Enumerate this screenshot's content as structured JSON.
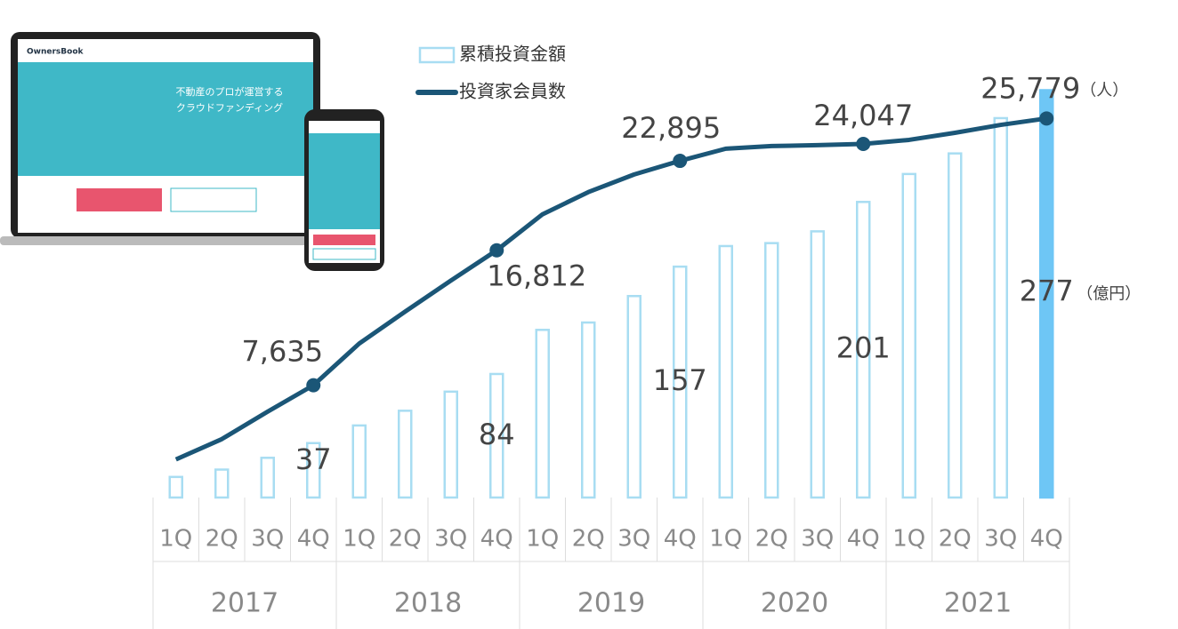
{
  "chart_data": {
    "type": "bar-line",
    "categories": [
      "1Q",
      "2Q",
      "3Q",
      "4Q",
      "1Q",
      "2Q",
      "3Q",
      "4Q",
      "1Q",
      "2Q",
      "3Q",
      "4Q",
      "1Q",
      "2Q",
      "3Q",
      "4Q",
      "1Q",
      "2Q",
      "3Q",
      "4Q"
    ],
    "groups": [
      "2017",
      "2018",
      "2019",
      "2020",
      "2021"
    ],
    "series": [
      {
        "name": "累積投資金額",
        "type": "bar",
        "unit": "（億円）",
        "color": "#a8ddf2",
        "colors": [
          "#a8ddf2",
          "#a8ddf2",
          "#a8ddf2",
          "#a8ddf2",
          "#a8ddf2",
          "#a8ddf2",
          "#a8ddf2",
          "#a8ddf2",
          "#a8ddf2",
          "#a8ddf2",
          "#a8ddf2",
          "#a8ddf2",
          "#a8ddf2",
          "#a8ddf2",
          "#a8ddf2",
          "#a8ddf2",
          "#a8ddf2",
          "#a8ddf2",
          "#a8ddf2",
          "#6ec6f5"
        ],
        "values": [
          14,
          19,
          27,
          37,
          49,
          59,
          72,
          84,
          114,
          119,
          137,
          157,
          171,
          173,
          181,
          201,
          220,
          234,
          258,
          277
        ]
      },
      {
        "name": "投資家会員数",
        "type": "line",
        "axis": "y2",
        "unit": "（人）",
        "color": "#1b5677",
        "values": [
          2590,
          3970,
          5840,
          7635,
          10470,
          12640,
          14750,
          16812,
          19260,
          20770,
          21970,
          22895,
          23720,
          23900,
          23960,
          24047,
          24320,
          24800,
          25340,
          25779
        ],
        "value_labels": [
          null,
          null,
          null,
          "7,635",
          null,
          null,
          null,
          "16,812",
          null,
          null,
          null,
          "22,895",
          null,
          null,
          null,
          "24,047",
          null,
          null,
          null,
          "25,779"
        ]
      }
    ],
    "ylim": [
      0,
      290
    ],
    "y2lim": [
      0,
      29000
    ]
  },
  "screenshot": {
    "brand": "OwnersBook",
    "headline": [
      "不動産のプロが運営する",
      "クラウドファンディング"
    ]
  }
}
